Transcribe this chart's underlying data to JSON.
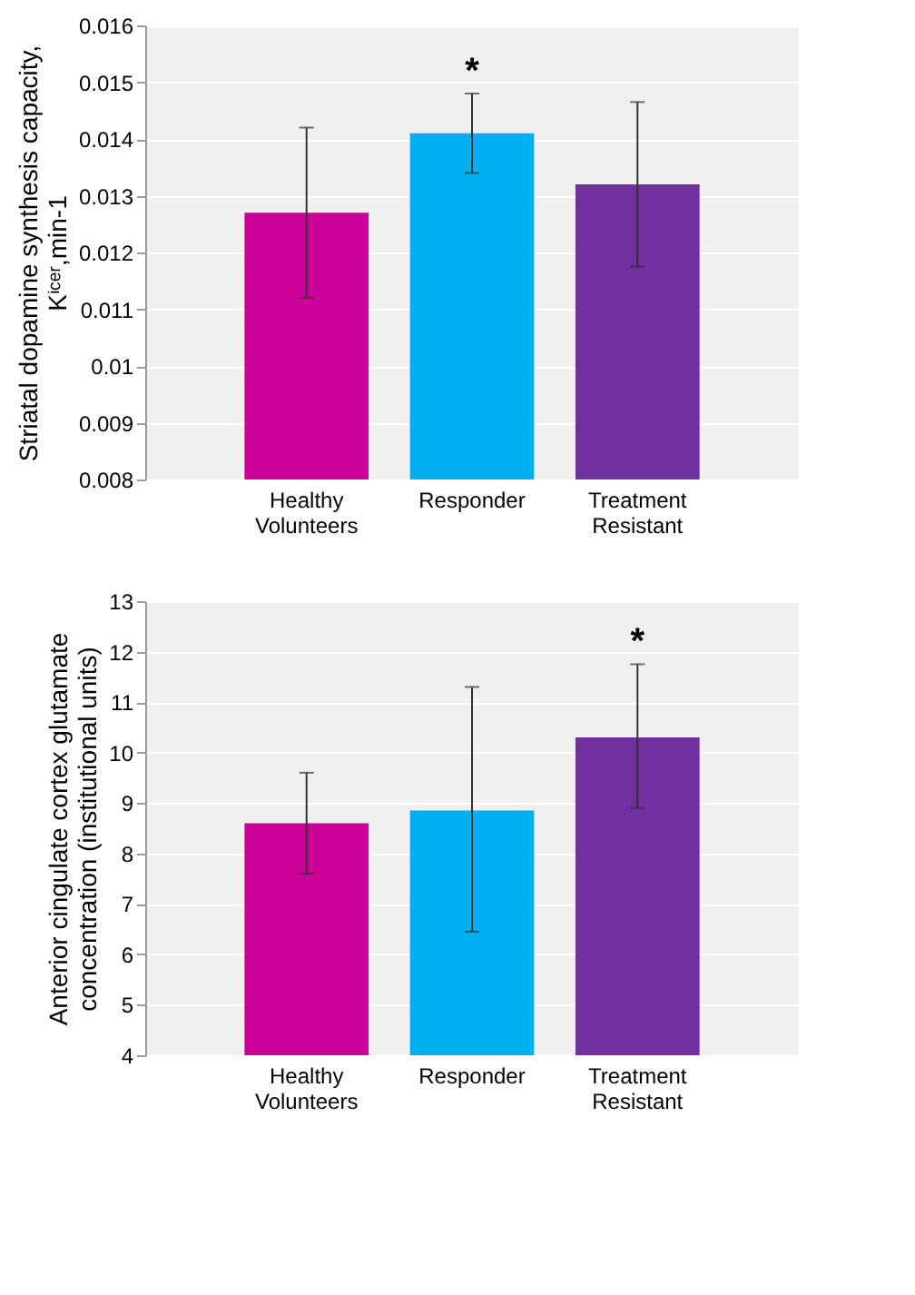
{
  "chart_data": [
    {
      "type": "bar",
      "ylabel": "Striatal dopamine synthesis capacity, Kⁱᶜᵉʳ,min-1",
      "categories": [
        "Healthy Volunteers",
        "Responder",
        "Treatment Resistant"
      ],
      "values": [
        0.0127,
        0.0141,
        0.0132
      ],
      "colors": [
        "#cc0099",
        "#00b0f0",
        "#7030a0"
      ],
      "errors": [
        [
          0.0112,
          0.0142
        ],
        [
          0.0134,
          0.0148
        ],
        [
          0.01175,
          0.01465
        ]
      ],
      "ylim": [
        0.008,
        0.016
      ],
      "yticks": [
        0.008,
        0.009,
        0.01,
        0.011,
        0.012,
        0.013,
        0.014,
        0.015,
        0.016
      ],
      "grid": "y",
      "annotations": [
        "*"
      ]
    },
    {
      "type": "bar",
      "ylabel": "Anterior cingulate cortex glutamate concentration (institutional units)",
      "categories": [
        "Healthy Volunteers",
        "Responder",
        "Treatment Resistant"
      ],
      "values": [
        8.6,
        8.85,
        10.3
      ],
      "colors": [
        "#cc0099",
        "#00b0f0",
        "#7030a0"
      ],
      "errors": [
        [
          7.6,
          9.6
        ],
        [
          6.45,
          11.3
        ],
        [
          8.9,
          11.75
        ]
      ],
      "ylim": [
        4,
        13
      ],
      "yticks": [
        4,
        5,
        6,
        7,
        8,
        9,
        10,
        11,
        12,
        13
      ],
      "grid": "y",
      "annotations": [
        "*"
      ]
    }
  ]
}
